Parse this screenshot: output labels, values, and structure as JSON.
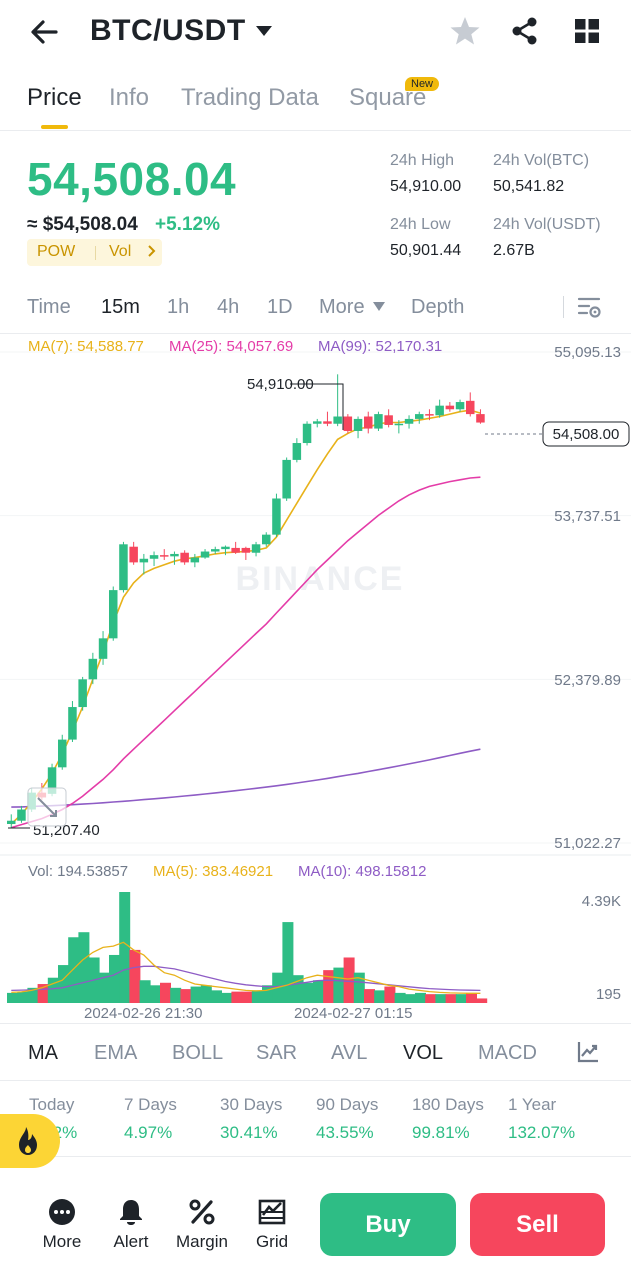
{
  "header": {
    "title": "BTC/USDT",
    "icons": [
      "back-arrow-icon",
      "caret-down-icon",
      "star-icon",
      "share-icon",
      "grid-icon"
    ]
  },
  "tabs": [
    {
      "label": "Price",
      "active": true
    },
    {
      "label": "Info"
    },
    {
      "label": "Trading Data"
    },
    {
      "label": "Square",
      "badge": "New"
    }
  ],
  "price": {
    "last": "54,508.04",
    "usd": "≈ $54,508.04",
    "change": "+5.12%",
    "tag_pow": "POW",
    "tag_vol": "Vol",
    "stats": {
      "high_label": "24h High",
      "high_value": "54,910.00",
      "vol_btc_label": "24h Vol(BTC)",
      "vol_btc_value": "50,541.82",
      "low_label": "24h Low",
      "low_value": "50,901.44",
      "vol_usdt_label": "24h Vol(USDT)",
      "vol_usdt_value": "2.67B"
    }
  },
  "intervals": [
    {
      "label": "Time"
    },
    {
      "label": "15m",
      "active": true
    },
    {
      "label": "1h"
    },
    {
      "label": "4h"
    },
    {
      "label": "1D"
    },
    {
      "label": "More"
    },
    {
      "label": "Depth"
    }
  ],
  "chart_labels": {
    "ma7": "MA(7): 54,588.77",
    "ma25": "MA(25): 54,057.69",
    "ma99": "MA(99): 52,170.31",
    "price_axis": [
      "55,095.13",
      "53,737.51",
      "52,379.89",
      "51,022.27"
    ],
    "high_marker": "54,910.00",
    "low_marker": "51,207.40",
    "current_price": "54,508.00",
    "watermark": "BINANCE",
    "vol": "Vol: 194.53857",
    "vol_ma5": "MA(5): 383.46921",
    "vol_ma10": "MA(10): 498.15812",
    "vol_axis": [
      "4.39K",
      "195"
    ],
    "time_axis": [
      "2024-02-26 21:30",
      "2024-02-27 01:15"
    ]
  },
  "chart_data": {
    "type": "candlestick",
    "ylim": [
      51022.27,
      55095.13
    ],
    "candles": [
      {
        "o": 51180,
        "h": 51260,
        "l": 51150,
        "c": 51207
      },
      {
        "o": 51207,
        "h": 51330,
        "l": 51190,
        "c": 51300
      },
      {
        "o": 51300,
        "h": 51480,
        "l": 51280,
        "c": 51440
      },
      {
        "o": 51440,
        "h": 51520,
        "l": 51380,
        "c": 51400
      },
      {
        "o": 51430,
        "h": 51680,
        "l": 51410,
        "c": 51650
      },
      {
        "o": 51650,
        "h": 51920,
        "l": 51630,
        "c": 51880
      },
      {
        "o": 51880,
        "h": 52200,
        "l": 51860,
        "c": 52150
      },
      {
        "o": 52150,
        "h": 52400,
        "l": 52120,
        "c": 52380
      },
      {
        "o": 52380,
        "h": 52600,
        "l": 52340,
        "c": 52550
      },
      {
        "o": 52550,
        "h": 52780,
        "l": 52500,
        "c": 52720
      },
      {
        "o": 52720,
        "h": 53150,
        "l": 52700,
        "c": 53120
      },
      {
        "o": 53120,
        "h": 53520,
        "l": 53100,
        "c": 53500
      },
      {
        "o": 53480,
        "h": 53520,
        "l": 53330,
        "c": 53350
      },
      {
        "o": 53350,
        "h": 53420,
        "l": 53250,
        "c": 53380
      },
      {
        "o": 53380,
        "h": 53440,
        "l": 53320,
        "c": 53410
      },
      {
        "o": 53410,
        "h": 53460,
        "l": 53370,
        "c": 53400
      },
      {
        "o": 53400,
        "h": 53440,
        "l": 53330,
        "c": 53420
      },
      {
        "o": 53430,
        "h": 53450,
        "l": 53330,
        "c": 53350
      },
      {
        "o": 53350,
        "h": 53420,
        "l": 53310,
        "c": 53390
      },
      {
        "o": 53390,
        "h": 53460,
        "l": 53380,
        "c": 53440
      },
      {
        "o": 53440,
        "h": 53480,
        "l": 53420,
        "c": 53460
      },
      {
        "o": 53460,
        "h": 53490,
        "l": 53410,
        "c": 53480
      },
      {
        "o": 53470,
        "h": 53520,
        "l": 53420,
        "c": 53430
      },
      {
        "o": 53470,
        "h": 53480,
        "l": 53370,
        "c": 53430
      },
      {
        "o": 53430,
        "h": 53520,
        "l": 53400,
        "c": 53500
      },
      {
        "o": 53500,
        "h": 53600,
        "l": 53480,
        "c": 53580
      },
      {
        "o": 53580,
        "h": 53920,
        "l": 53560,
        "c": 53880
      },
      {
        "o": 53880,
        "h": 54220,
        "l": 53860,
        "c": 54200
      },
      {
        "o": 54200,
        "h": 54380,
        "l": 54180,
        "c": 54340
      },
      {
        "o": 54340,
        "h": 54520,
        "l": 54320,
        "c": 54500
      },
      {
        "o": 54500,
        "h": 54540,
        "l": 54470,
        "c": 54520
      },
      {
        "o": 54520,
        "h": 54600,
        "l": 54480,
        "c": 54500
      },
      {
        "o": 54500,
        "h": 54910,
        "l": 54480,
        "c": 54560
      },
      {
        "o": 54560,
        "h": 54580,
        "l": 54420,
        "c": 54440
      },
      {
        "o": 54440,
        "h": 54560,
        "l": 54380,
        "c": 54540
      },
      {
        "o": 54560,
        "h": 54600,
        "l": 54420,
        "c": 54460
      },
      {
        "o": 54460,
        "h": 54600,
        "l": 54440,
        "c": 54580
      },
      {
        "o": 54570,
        "h": 54620,
        "l": 54470,
        "c": 54490
      },
      {
        "o": 54490,
        "h": 54530,
        "l": 54420,
        "c": 54500
      },
      {
        "o": 54500,
        "h": 54570,
        "l": 54460,
        "c": 54540
      },
      {
        "o": 54540,
        "h": 54600,
        "l": 54500,
        "c": 54580
      },
      {
        "o": 54580,
        "h": 54620,
        "l": 54530,
        "c": 54570
      },
      {
        "o": 54570,
        "h": 54700,
        "l": 54550,
        "c": 54650
      },
      {
        "o": 54650,
        "h": 54680,
        "l": 54600,
        "c": 54620
      },
      {
        "o": 54620,
        "h": 54700,
        "l": 54600,
        "c": 54680
      },
      {
        "o": 54690,
        "h": 54760,
        "l": 54560,
        "c": 54580
      },
      {
        "o": 54580,
        "h": 54620,
        "l": 54500,
        "c": 54510
      }
    ],
    "ma7": [
      51180,
      51260,
      51360,
      51470,
      51600,
      51760,
      51950,
      52150,
      52380,
      52600,
      52850,
      53060,
      53180,
      53260,
      53300,
      53330,
      53360,
      53380,
      53390,
      53405,
      53420,
      53430,
      53435,
      53440,
      53450,
      53470,
      53560,
      53700,
      53840,
      53980,
      54120,
      54250,
      54370,
      54420,
      54460,
      54470,
      54500,
      54510,
      54510,
      54520,
      54530,
      54545,
      54560,
      54580,
      54600,
      54612,
      54588
    ],
    "ma25": [
      51150,
      51175,
      51200,
      51225,
      51260,
      51300,
      51350,
      51410,
      51480,
      51550,
      51630,
      51720,
      51800,
      51880,
      51960,
      52040,
      52120,
      52200,
      52280,
      52360,
      52440,
      52520,
      52600,
      52680,
      52760,
      52840,
      52930,
      53020,
      53110,
      53200,
      53290,
      53370,
      53450,
      53530,
      53600,
      53670,
      53740,
      53800,
      53860,
      53910,
      53950,
      53980,
      54000,
      54020,
      54035,
      54050,
      54057
    ],
    "ma99": [
      51320,
      51322,
      51325,
      51328,
      51332,
      51336,
      51340,
      51345,
      51350,
      51356,
      51362,
      51368,
      51375,
      51382,
      51389,
      51396,
      51404,
      51412,
      51420,
      51429,
      51438,
      51447,
      51456,
      51466,
      51476,
      51486,
      51497,
      51508,
      51520,
      51532,
      51545,
      51558,
      51572,
      51586,
      51600,
      51615,
      51630,
      51646,
      51662,
      51678,
      51695,
      51712,
      51730,
      51748,
      51766,
      51784,
      51800
    ],
    "volume": {
      "ylim": [
        0,
        4390
      ],
      "values": [
        400,
        450,
        600,
        750,
        1000,
        1500,
        2600,
        2800,
        1800,
        1200,
        1900,
        4390,
        2100,
        900,
        700,
        800,
        600,
        550,
        650,
        700,
        500,
        400,
        450,
        450,
        500,
        700,
        1200,
        3200,
        1100,
        800,
        900,
        1300,
        1400,
        1800,
        1200,
        550,
        500,
        650,
        400,
        350,
        400,
        350,
        350,
        350,
        350,
        400,
        180
      ],
      "ma5": [
        420,
        440,
        500,
        600,
        750,
        900,
        1300,
        1700,
        2000,
        2200,
        2250,
        2400,
        2100,
        1900,
        1500,
        1200,
        1100,
        900,
        750,
        700,
        650,
        600,
        550,
        500,
        480,
        500,
        600,
        700,
        850,
        1000,
        1100,
        1050,
        1000,
        950,
        1000,
        900,
        800,
        700,
        650,
        550,
        500,
        450,
        420,
        400,
        390,
        385,
        383
      ],
      "ma10": [
        500,
        510,
        520,
        540,
        560,
        600,
        700,
        800,
        900,
        1000,
        1100,
        1300,
        1400,
        1450,
        1450,
        1400,
        1350,
        1250,
        1150,
        1050,
        950,
        850,
        780,
        720,
        680,
        650,
        650,
        700,
        760,
        820,
        880,
        900,
        880,
        860,
        840,
        800,
        760,
        720,
        680,
        640,
        600,
        570,
        550,
        530,
        515,
        505,
        498
      ]
    }
  },
  "indicators": [
    {
      "label": "MA",
      "active": true
    },
    {
      "label": "EMA"
    },
    {
      "label": "BOLL"
    },
    {
      "label": "SAR"
    },
    {
      "label": "AVL"
    },
    {
      "label": "VOL",
      "active": true
    },
    {
      "label": "MACD"
    }
  ],
  "performance": [
    {
      "label": "Today",
      "value": "5.12%"
    },
    {
      "label": "7 Days",
      "value": "4.97%"
    },
    {
      "label": "30 Days",
      "value": "30.41%"
    },
    {
      "label": "90 Days",
      "value": "43.55%"
    },
    {
      "label": "180 Days",
      "value": "99.81%"
    },
    {
      "label": "1 Year",
      "value": "132.07%"
    }
  ],
  "bottom_bar": {
    "more": "More",
    "alert": "Alert",
    "margin": "Margin",
    "grid": "Grid",
    "buy": "Buy",
    "sell": "Sell"
  },
  "colors": {
    "up": "#2ebd85",
    "down": "#f6465d",
    "ma7": "#e8b21a",
    "ma25": "#e43ca8",
    "ma99": "#8e5cc5",
    "accent": "#f0b90b"
  }
}
